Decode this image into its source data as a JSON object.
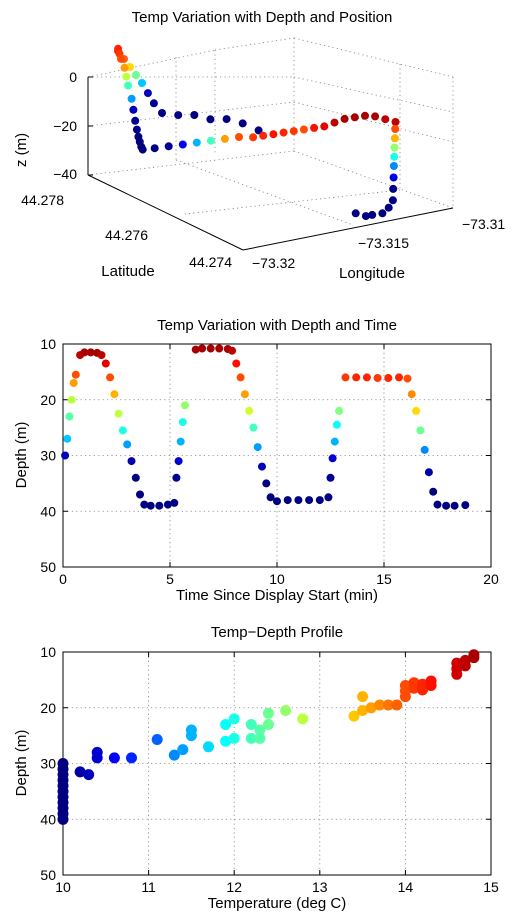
{
  "chart_data": [
    {
      "type": "scatter",
      "title": "Temp Variation with Depth and Position",
      "xlabel": "Longitude",
      "ylabel": "Latitude",
      "zlabel": "z (m)",
      "xlim": [
        -73.32,
        -73.31
      ],
      "ylim": [
        44.274,
        44.278
      ],
      "zlim": [
        -45,
        0
      ],
      "xticks": [
        "−73.32",
        "−73.315",
        "−73.31"
      ],
      "yticks": [
        "44.274",
        "44.276",
        "44.278"
      ],
      "zticks": [
        "0",
        "−20",
        "−40"
      ],
      "grid": true,
      "color_encoding": "temperature (blue = cold, dark red = warm)",
      "points": [
        {
          "lon": -73.3128,
          "lat": 44.2775,
          "z": -35,
          "t": 10.0
        },
        {
          "lon": -73.313,
          "lat": 44.2778,
          "z": -34,
          "t": 10.0
        },
        {
          "lon": -73.3134,
          "lat": 44.278,
          "z": -33,
          "t": 10.0
        },
        {
          "lon": -73.3138,
          "lat": 44.2782,
          "z": -34,
          "t": 10.0
        },
        {
          "lon": -73.3142,
          "lat": 44.2784,
          "z": -33,
          "t": 10.0
        },
        {
          "lon": -73.3146,
          "lat": 44.2786,
          "z": -34,
          "t": 10.0
        },
        {
          "lon": -73.315,
          "lat": 44.2788,
          "z": -34,
          "t": 10.0
        },
        {
          "lon": -73.3152,
          "lat": 44.2789,
          "z": -30,
          "t": 10.1
        },
        {
          "lon": -73.3153,
          "lat": 44.279,
          "z": -26,
          "t": 10.3
        },
        {
          "lon": -73.3154,
          "lat": 44.2791,
          "z": -22,
          "t": 11.6
        },
        {
          "lon": -73.3155,
          "lat": 44.2792,
          "z": -19,
          "t": 12.4
        },
        {
          "lon": -73.3156,
          "lat": 44.2793,
          "z": -16,
          "t": 13.3
        },
        {
          "lon": -73.3157,
          "lat": 44.2794,
          "z": -13,
          "t": 13.9
        },
        {
          "lon": -73.3158,
          "lat": 44.2795,
          "z": -10,
          "t": 14.3
        },
        {
          "lon": -73.3158,
          "lat": 44.2795,
          "z": -9,
          "t": 14.2
        },
        {
          "lon": -73.3161,
          "lat": 44.2793,
          "z": -9,
          "t": 14.1
        },
        {
          "lon": -73.3164,
          "lat": 44.2791,
          "z": -9,
          "t": 14.0
        },
        {
          "lon": -73.3166,
          "lat": 44.2789,
          "z": -11,
          "t": 13.6
        },
        {
          "lon": -73.3167,
          "lat": 44.2788,
          "z": -14,
          "t": 12.8
        },
        {
          "lon": -73.3168,
          "lat": 44.2787,
          "z": -17,
          "t": 12.2
        },
        {
          "lon": -73.317,
          "lat": 44.2785,
          "z": -21,
          "t": 11.4
        },
        {
          "lon": -73.3171,
          "lat": 44.2784,
          "z": -25,
          "t": 10.3
        },
        {
          "lon": -73.3172,
          "lat": 44.2783,
          "z": -29,
          "t": 10.1
        },
        {
          "lon": -73.3173,
          "lat": 44.2782,
          "z": -32,
          "t": 10.0
        },
        {
          "lon": -73.3176,
          "lat": 44.278,
          "z": -33,
          "t": 10.0
        },
        {
          "lon": -73.3179,
          "lat": 44.2778,
          "z": -33,
          "t": 10.0
        },
        {
          "lon": -73.3182,
          "lat": 44.2776,
          "z": -33,
          "t": 10.0
        },
        {
          "lon": -73.3185,
          "lat": 44.2774,
          "z": -32,
          "t": 10.0
        },
        {
          "lon": -73.3183,
          "lat": 44.2772,
          "z": -30,
          "t": 10.0
        },
        {
          "lon": -73.318,
          "lat": 44.277,
          "z": -28,
          "t": 10.1
        },
        {
          "lon": -73.3177,
          "lat": 44.2768,
          "z": -26,
          "t": 10.6
        },
        {
          "lon": -73.3174,
          "lat": 44.2766,
          "z": -24,
          "t": 11.5
        },
        {
          "lon": -73.3171,
          "lat": 44.2764,
          "z": -22,
          "t": 12.2
        },
        {
          "lon": -73.3168,
          "lat": 44.2762,
          "z": -20,
          "t": 13.6
        },
        {
          "lon": -73.3165,
          "lat": 44.276,
          "z": -18,
          "t": 14.0
        },
        {
          "lon": -73.3162,
          "lat": 44.2758,
          "z": -17,
          "t": 14.1
        },
        {
          "lon": -73.3159,
          "lat": 44.2757,
          "z": -16,
          "t": 14.2
        },
        {
          "lon": -73.3156,
          "lat": 44.2756,
          "z": -15,
          "t": 14.3
        },
        {
          "lon": -73.3153,
          "lat": 44.2755,
          "z": -14,
          "t": 14.2
        },
        {
          "lon": -73.315,
          "lat": 44.2754,
          "z": -13,
          "t": 14.1
        },
        {
          "lon": -73.3147,
          "lat": 44.2753,
          "z": -12,
          "t": 14.0
        },
        {
          "lon": -73.3144,
          "lat": 44.2752,
          "z": -11,
          "t": 14.3
        },
        {
          "lon": -73.3141,
          "lat": 44.2751,
          "z": -10,
          "t": 14.5
        },
        {
          "lon": -73.3138,
          "lat": 44.275,
          "z": -8,
          "t": 14.7
        },
        {
          "lon": -73.3135,
          "lat": 44.2749,
          "z": -6,
          "t": 14.8
        },
        {
          "lon": -73.3132,
          "lat": 44.2748,
          "z": -5,
          "t": 14.8
        },
        {
          "lon": -73.3129,
          "lat": 44.2747,
          "z": -4,
          "t": 14.8
        },
        {
          "lon": -73.3126,
          "lat": 44.2746,
          "z": -4,
          "t": 14.8
        },
        {
          "lon": -73.3123,
          "lat": 44.2745,
          "z": -5,
          "t": 14.7
        },
        {
          "lon": -73.312,
          "lat": 44.2744,
          "z": -6,
          "t": 14.7
        },
        {
          "lon": -73.3122,
          "lat": 44.2743,
          "z": -8,
          "t": 14.0
        },
        {
          "lon": -73.3124,
          "lat": 44.2742,
          "z": -11,
          "t": 13.5
        },
        {
          "lon": -73.3126,
          "lat": 44.2741,
          "z": -14,
          "t": 12.6
        },
        {
          "lon": -73.3128,
          "lat": 44.274,
          "z": -17,
          "t": 12.0
        },
        {
          "lon": -73.313,
          "lat": 44.2739,
          "z": -20,
          "t": 11.3
        },
        {
          "lon": -73.3132,
          "lat": 44.2738,
          "z": -24,
          "t": 10.5
        },
        {
          "lon": -73.3134,
          "lat": 44.2737,
          "z": -28,
          "t": 10.0
        },
        {
          "lon": -73.3136,
          "lat": 44.2736,
          "z": -32,
          "t": 10.0
        },
        {
          "lon": -73.3138,
          "lat": 44.2736,
          "z": -35,
          "t": 10.0
        },
        {
          "lon": -73.3141,
          "lat": 44.2736,
          "z": -37,
          "t": 10.0
        },
        {
          "lon": -73.3144,
          "lat": 44.2737,
          "z": -38,
          "t": 10.0
        },
        {
          "lon": -73.3147,
          "lat": 44.2737,
          "z": -38,
          "t": 10.0
        },
        {
          "lon": -73.315,
          "lat": 44.2738,
          "z": -37,
          "t": 10.0
        }
      ]
    },
    {
      "type": "scatter",
      "title": "Temp Variation with Depth and Time",
      "xlabel": "Time Since Display Start (min)",
      "ylabel": "Depth (m)",
      "xlim": [
        0,
        20
      ],
      "ylim": [
        10,
        50
      ],
      "y_reversed": true,
      "xticks": [
        "0",
        "5",
        "10",
        "15",
        "20"
      ],
      "yticks": [
        "10",
        "20",
        "30",
        "40",
        "50"
      ],
      "grid": true,
      "color_encoding": "temperature (blue = cold, dark red = warm)",
      "points": [
        {
          "x": 0.1,
          "y": 30.0,
          "t": 10.3
        },
        {
          "x": 0.2,
          "y": 27.0,
          "t": 11.6
        },
        {
          "x": 0.3,
          "y": 23.0,
          "t": 12.3
        },
        {
          "x": 0.4,
          "y": 20.0,
          "t": 12.8
        },
        {
          "x": 0.5,
          "y": 17.0,
          "t": 13.6
        },
        {
          "x": 0.6,
          "y": 15.5,
          "t": 14.0
        },
        {
          "x": 0.8,
          "y": 12.0,
          "t": 14.7
        },
        {
          "x": 1.0,
          "y": 11.5,
          "t": 14.8
        },
        {
          "x": 1.3,
          "y": 11.5,
          "t": 14.8
        },
        {
          "x": 1.6,
          "y": 11.6,
          "t": 14.8
        },
        {
          "x": 1.8,
          "y": 12.0,
          "t": 14.7
        },
        {
          "x": 2.0,
          "y": 13.5,
          "t": 14.5
        },
        {
          "x": 2.2,
          "y": 16.0,
          "t": 14.0
        },
        {
          "x": 2.4,
          "y": 19.0,
          "t": 13.5
        },
        {
          "x": 2.6,
          "y": 22.5,
          "t": 12.8
        },
        {
          "x": 2.8,
          "y": 25.5,
          "t": 12.0
        },
        {
          "x": 3.0,
          "y": 28.0,
          "t": 11.4
        },
        {
          "x": 3.2,
          "y": 31.0,
          "t": 10.2
        },
        {
          "x": 3.4,
          "y": 34.0,
          "t": 10.0
        },
        {
          "x": 3.6,
          "y": 37.0,
          "t": 10.0
        },
        {
          "x": 3.8,
          "y": 38.8,
          "t": 10.0
        },
        {
          "x": 4.1,
          "y": 39.0,
          "t": 10.0
        },
        {
          "x": 4.5,
          "y": 39.0,
          "t": 10.0
        },
        {
          "x": 4.9,
          "y": 38.8,
          "t": 10.0
        },
        {
          "x": 5.2,
          "y": 38.5,
          "t": 10.0
        },
        {
          "x": 5.3,
          "y": 34.0,
          "t": 10.1
        },
        {
          "x": 5.4,
          "y": 31.0,
          "t": 10.4
        },
        {
          "x": 5.5,
          "y": 27.5,
          "t": 11.5
        },
        {
          "x": 5.6,
          "y": 24.0,
          "t": 12.0
        },
        {
          "x": 5.7,
          "y": 21.0,
          "t": 12.6
        },
        {
          "x": 6.2,
          "y": 11.0,
          "t": 14.8
        },
        {
          "x": 6.5,
          "y": 10.8,
          "t": 14.8
        },
        {
          "x": 6.9,
          "y": 10.8,
          "t": 14.8
        },
        {
          "x": 7.3,
          "y": 10.8,
          "t": 14.8
        },
        {
          "x": 7.7,
          "y": 10.9,
          "t": 14.8
        },
        {
          "x": 7.9,
          "y": 11.2,
          "t": 14.7
        },
        {
          "x": 8.1,
          "y": 13.5,
          "t": 14.3
        },
        {
          "x": 8.3,
          "y": 16.0,
          "t": 14.0
        },
        {
          "x": 8.5,
          "y": 19.0,
          "t": 13.6
        },
        {
          "x": 8.7,
          "y": 22.0,
          "t": 12.9
        },
        {
          "x": 8.9,
          "y": 25.0,
          "t": 12.2
        },
        {
          "x": 9.1,
          "y": 28.5,
          "t": 11.4
        },
        {
          "x": 9.3,
          "y": 32.0,
          "t": 10.3
        },
        {
          "x": 9.5,
          "y": 35.0,
          "t": 10.0
        },
        {
          "x": 9.7,
          "y": 37.5,
          "t": 10.0
        },
        {
          "x": 10.0,
          "y": 38.2,
          "t": 10.0
        },
        {
          "x": 10.5,
          "y": 38.0,
          "t": 10.0
        },
        {
          "x": 11.0,
          "y": 38.0,
          "t": 10.0
        },
        {
          "x": 11.5,
          "y": 38.0,
          "t": 10.0
        },
        {
          "x": 12.0,
          "y": 38.0,
          "t": 10.0
        },
        {
          "x": 12.4,
          "y": 37.5,
          "t": 10.0
        },
        {
          "x": 12.5,
          "y": 34.0,
          "t": 10.1
        },
        {
          "x": 12.6,
          "y": 30.5,
          "t": 10.4
        },
        {
          "x": 12.7,
          "y": 27.5,
          "t": 11.5
        },
        {
          "x": 12.8,
          "y": 24.5,
          "t": 11.9
        },
        {
          "x": 12.9,
          "y": 22.0,
          "t": 12.5
        },
        {
          "x": 13.2,
          "y": 16.0,
          "t": 14.1
        },
        {
          "x": 13.7,
          "y": 16.0,
          "t": 14.2
        },
        {
          "x": 14.2,
          "y": 16.0,
          "t": 14.2
        },
        {
          "x": 14.7,
          "y": 16.1,
          "t": 14.1
        },
        {
          "x": 15.2,
          "y": 16.1,
          "t": 14.2
        },
        {
          "x": 15.7,
          "y": 16.0,
          "t": 14.2
        },
        {
          "x": 16.1,
          "y": 16.2,
          "t": 14.0
        },
        {
          "x": 16.3,
          "y": 19.0,
          "t": 13.7
        },
        {
          "x": 16.5,
          "y": 22.0,
          "t": 13.3
        },
        {
          "x": 16.7,
          "y": 25.5,
          "t": 12.4
        },
        {
          "x": 16.9,
          "y": 29.0,
          "t": 11.3
        },
        {
          "x": 17.1,
          "y": 33.0,
          "t": 10.2
        },
        {
          "x": 17.3,
          "y": 36.5,
          "t": 10.0
        },
        {
          "x": 17.5,
          "y": 38.8,
          "t": 10.0
        },
        {
          "x": 17.9,
          "y": 39.0,
          "t": 10.0
        },
        {
          "x": 18.3,
          "y": 39.0,
          "t": 10.0
        },
        {
          "x": 18.8,
          "y": 38.9,
          "t": 10.0
        }
      ]
    },
    {
      "type": "scatter",
      "title": "Temp−Depth Profile",
      "xlabel": "Temperature (deg C)",
      "ylabel": "Depth (m)",
      "xlim": [
        10,
        15
      ],
      "ylim": [
        10,
        50
      ],
      "y_reversed": true,
      "xticks": [
        "10",
        "11",
        "12",
        "13",
        "14",
        "15"
      ],
      "yticks": [
        "10",
        "20",
        "30",
        "40",
        "50"
      ],
      "grid": true,
      "color_encoding": "temperature (blue = cold, dark red = warm)",
      "points": [
        {
          "x": 10.0,
          "y": 30.0
        },
        {
          "x": 10.0,
          "y": 31.0
        },
        {
          "x": 10.0,
          "y": 32.0
        },
        {
          "x": 10.0,
          "y": 33.0
        },
        {
          "x": 10.0,
          "y": 34.0
        },
        {
          "x": 10.0,
          "y": 35.0
        },
        {
          "x": 10.0,
          "y": 36.0
        },
        {
          "x": 10.0,
          "y": 37.0
        },
        {
          "x": 10.0,
          "y": 38.0
        },
        {
          "x": 10.0,
          "y": 39.0
        },
        {
          "x": 10.0,
          "y": 40.0
        },
        {
          "x": 10.2,
          "y": 31.5
        },
        {
          "x": 10.3,
          "y": 32.0
        },
        {
          "x": 10.4,
          "y": 28.0
        },
        {
          "x": 10.4,
          "y": 29.0
        },
        {
          "x": 10.6,
          "y": 29.0
        },
        {
          "x": 10.8,
          "y": 29.0
        },
        {
          "x": 11.1,
          "y": 25.7
        },
        {
          "x": 11.3,
          "y": 28.5
        },
        {
          "x": 11.4,
          "y": 27.5
        },
        {
          "x": 11.5,
          "y": 24.0
        },
        {
          "x": 11.5,
          "y": 25.0
        },
        {
          "x": 11.7,
          "y": 27.0
        },
        {
          "x": 11.9,
          "y": 26.0
        },
        {
          "x": 11.9,
          "y": 23.0
        },
        {
          "x": 12.0,
          "y": 22.0
        },
        {
          "x": 12.0,
          "y": 25.5
        },
        {
          "x": 12.2,
          "y": 23.0
        },
        {
          "x": 12.2,
          "y": 25.5
        },
        {
          "x": 12.3,
          "y": 24.0
        },
        {
          "x": 12.3,
          "y": 25.5
        },
        {
          "x": 12.4,
          "y": 21.0
        },
        {
          "x": 12.4,
          "y": 23.0
        },
        {
          "x": 12.6,
          "y": 20.5
        },
        {
          "x": 12.8,
          "y": 22.0
        },
        {
          "x": 13.4,
          "y": 21.5
        },
        {
          "x": 13.5,
          "y": 18.0
        },
        {
          "x": 13.5,
          "y": 20.5
        },
        {
          "x": 13.6,
          "y": 20.0
        },
        {
          "x": 13.7,
          "y": 19.5
        },
        {
          "x": 13.8,
          "y": 19.5
        },
        {
          "x": 13.9,
          "y": 19.5
        },
        {
          "x": 14.0,
          "y": 16.0
        },
        {
          "x": 14.0,
          "y": 17.0
        },
        {
          "x": 14.0,
          "y": 18.0
        },
        {
          "x": 14.1,
          "y": 15.5
        },
        {
          "x": 14.1,
          "y": 16.5
        },
        {
          "x": 14.2,
          "y": 15.8
        },
        {
          "x": 14.2,
          "y": 16.8
        },
        {
          "x": 14.3,
          "y": 16.0
        },
        {
          "x": 14.3,
          "y": 15.2
        },
        {
          "x": 14.6,
          "y": 12.0
        },
        {
          "x": 14.6,
          "y": 13.0
        },
        {
          "x": 14.7,
          "y": 11.5
        },
        {
          "x": 14.7,
          "y": 12.5
        },
        {
          "x": 14.8,
          "y": 11.0
        },
        {
          "x": 14.8,
          "y": 10.5
        },
        {
          "x": 14.6,
          "y": 14.0
        }
      ]
    }
  ]
}
